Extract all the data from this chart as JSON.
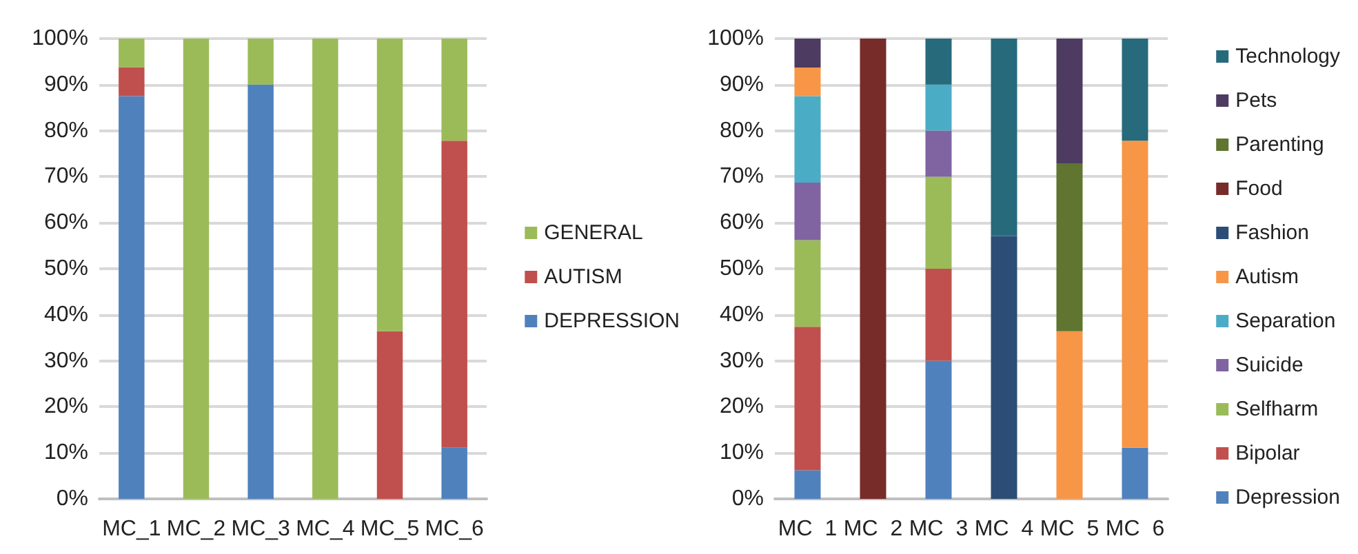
{
  "chart_data": [
    {
      "type": "bar",
      "stacked": true,
      "categories": [
        "MC_1",
        "MC_2",
        "MC_3",
        "MC_4",
        "MC_5",
        "MC_6"
      ],
      "ylim": [
        0,
        100
      ],
      "yticks": [
        {
          "value": 0,
          "label": "0%"
        },
        {
          "value": 10,
          "label": "10%"
        },
        {
          "value": 20,
          "label": "20%"
        },
        {
          "value": 30,
          "label": "30%"
        },
        {
          "value": 40,
          "label": "40%"
        },
        {
          "value": 50,
          "label": "50%"
        },
        {
          "value": 60,
          "label": "60%"
        },
        {
          "value": 70,
          "label": "70%"
        },
        {
          "value": 80,
          "label": "80%"
        },
        {
          "value": 90,
          "label": "90%"
        },
        {
          "value": 100,
          "label": "100%"
        }
      ],
      "grid": "y",
      "legend": "right",
      "series": [
        {
          "name": "DEPRESSION",
          "color": "#4f81bd",
          "values": [
            87.5,
            null,
            90,
            null,
            null,
            11.1
          ]
        },
        {
          "name": "AUTISM",
          "color": "#c0504d",
          "values": [
            6.3,
            null,
            null,
            null,
            36.4,
            66.7
          ]
        },
        {
          "name": "GENERAL",
          "color": "#9bbb59",
          "values": [
            6.2,
            100,
            10,
            100,
            63.6,
            22.2
          ]
        }
      ]
    },
    {
      "type": "bar",
      "stacked": true,
      "categories": [
        "MC  1",
        "MC  2",
        "MC  3",
        "MC  4",
        "MC  5",
        "MC  6"
      ],
      "ylim": [
        0,
        100
      ],
      "yticks": [
        {
          "value": 0,
          "label": "0%"
        },
        {
          "value": 10,
          "label": "10%"
        },
        {
          "value": 20,
          "label": "20%"
        },
        {
          "value": 30,
          "label": "30%"
        },
        {
          "value": 40,
          "label": "40%"
        },
        {
          "value": 50,
          "label": "50%"
        },
        {
          "value": 60,
          "label": "60%"
        },
        {
          "value": 70,
          "label": "70%"
        },
        {
          "value": 80,
          "label": "80%"
        },
        {
          "value": 90,
          "label": "90%"
        },
        {
          "value": 100,
          "label": "100%"
        }
      ],
      "grid": "y",
      "legend": "right",
      "series": [
        {
          "name": "Depression",
          "color": "#4f81bd",
          "values": [
            6.2,
            null,
            30,
            null,
            null,
            11.1
          ]
        },
        {
          "name": "Bipolar",
          "color": "#c0504d",
          "values": [
            31.2,
            null,
            20,
            null,
            null,
            null
          ]
        },
        {
          "name": "Selfharm",
          "color": "#9bbb59",
          "values": [
            18.8,
            null,
            20,
            null,
            null,
            null
          ]
        },
        {
          "name": "Suicide",
          "color": "#8064a2",
          "values": [
            12.5,
            null,
            10,
            null,
            null,
            null
          ]
        },
        {
          "name": "Separation",
          "color": "#4bacc6",
          "values": [
            18.8,
            null,
            10,
            null,
            null,
            null
          ]
        },
        {
          "name": "Autism",
          "color": "#f79646",
          "values": [
            6.2,
            null,
            null,
            null,
            36.4,
            66.7
          ]
        },
        {
          "name": "Fashion",
          "color": "#2c4d75",
          "values": [
            null,
            null,
            null,
            57.1,
            null,
            null
          ]
        },
        {
          "name": "Food",
          "color": "#772c2a",
          "values": [
            null,
            100,
            null,
            null,
            null,
            null
          ]
        },
        {
          "name": "Parenting",
          "color": "#5f7530",
          "values": [
            null,
            null,
            null,
            null,
            36.4,
            null
          ]
        },
        {
          "name": "Pets",
          "color": "#4d3b62",
          "values": [
            6.3,
            null,
            null,
            null,
            27.2,
            null
          ]
        },
        {
          "name": "Technology",
          "color": "#276a7c",
          "values": [
            null,
            null,
            10,
            42.9,
            null,
            22.2
          ]
        }
      ]
    }
  ]
}
